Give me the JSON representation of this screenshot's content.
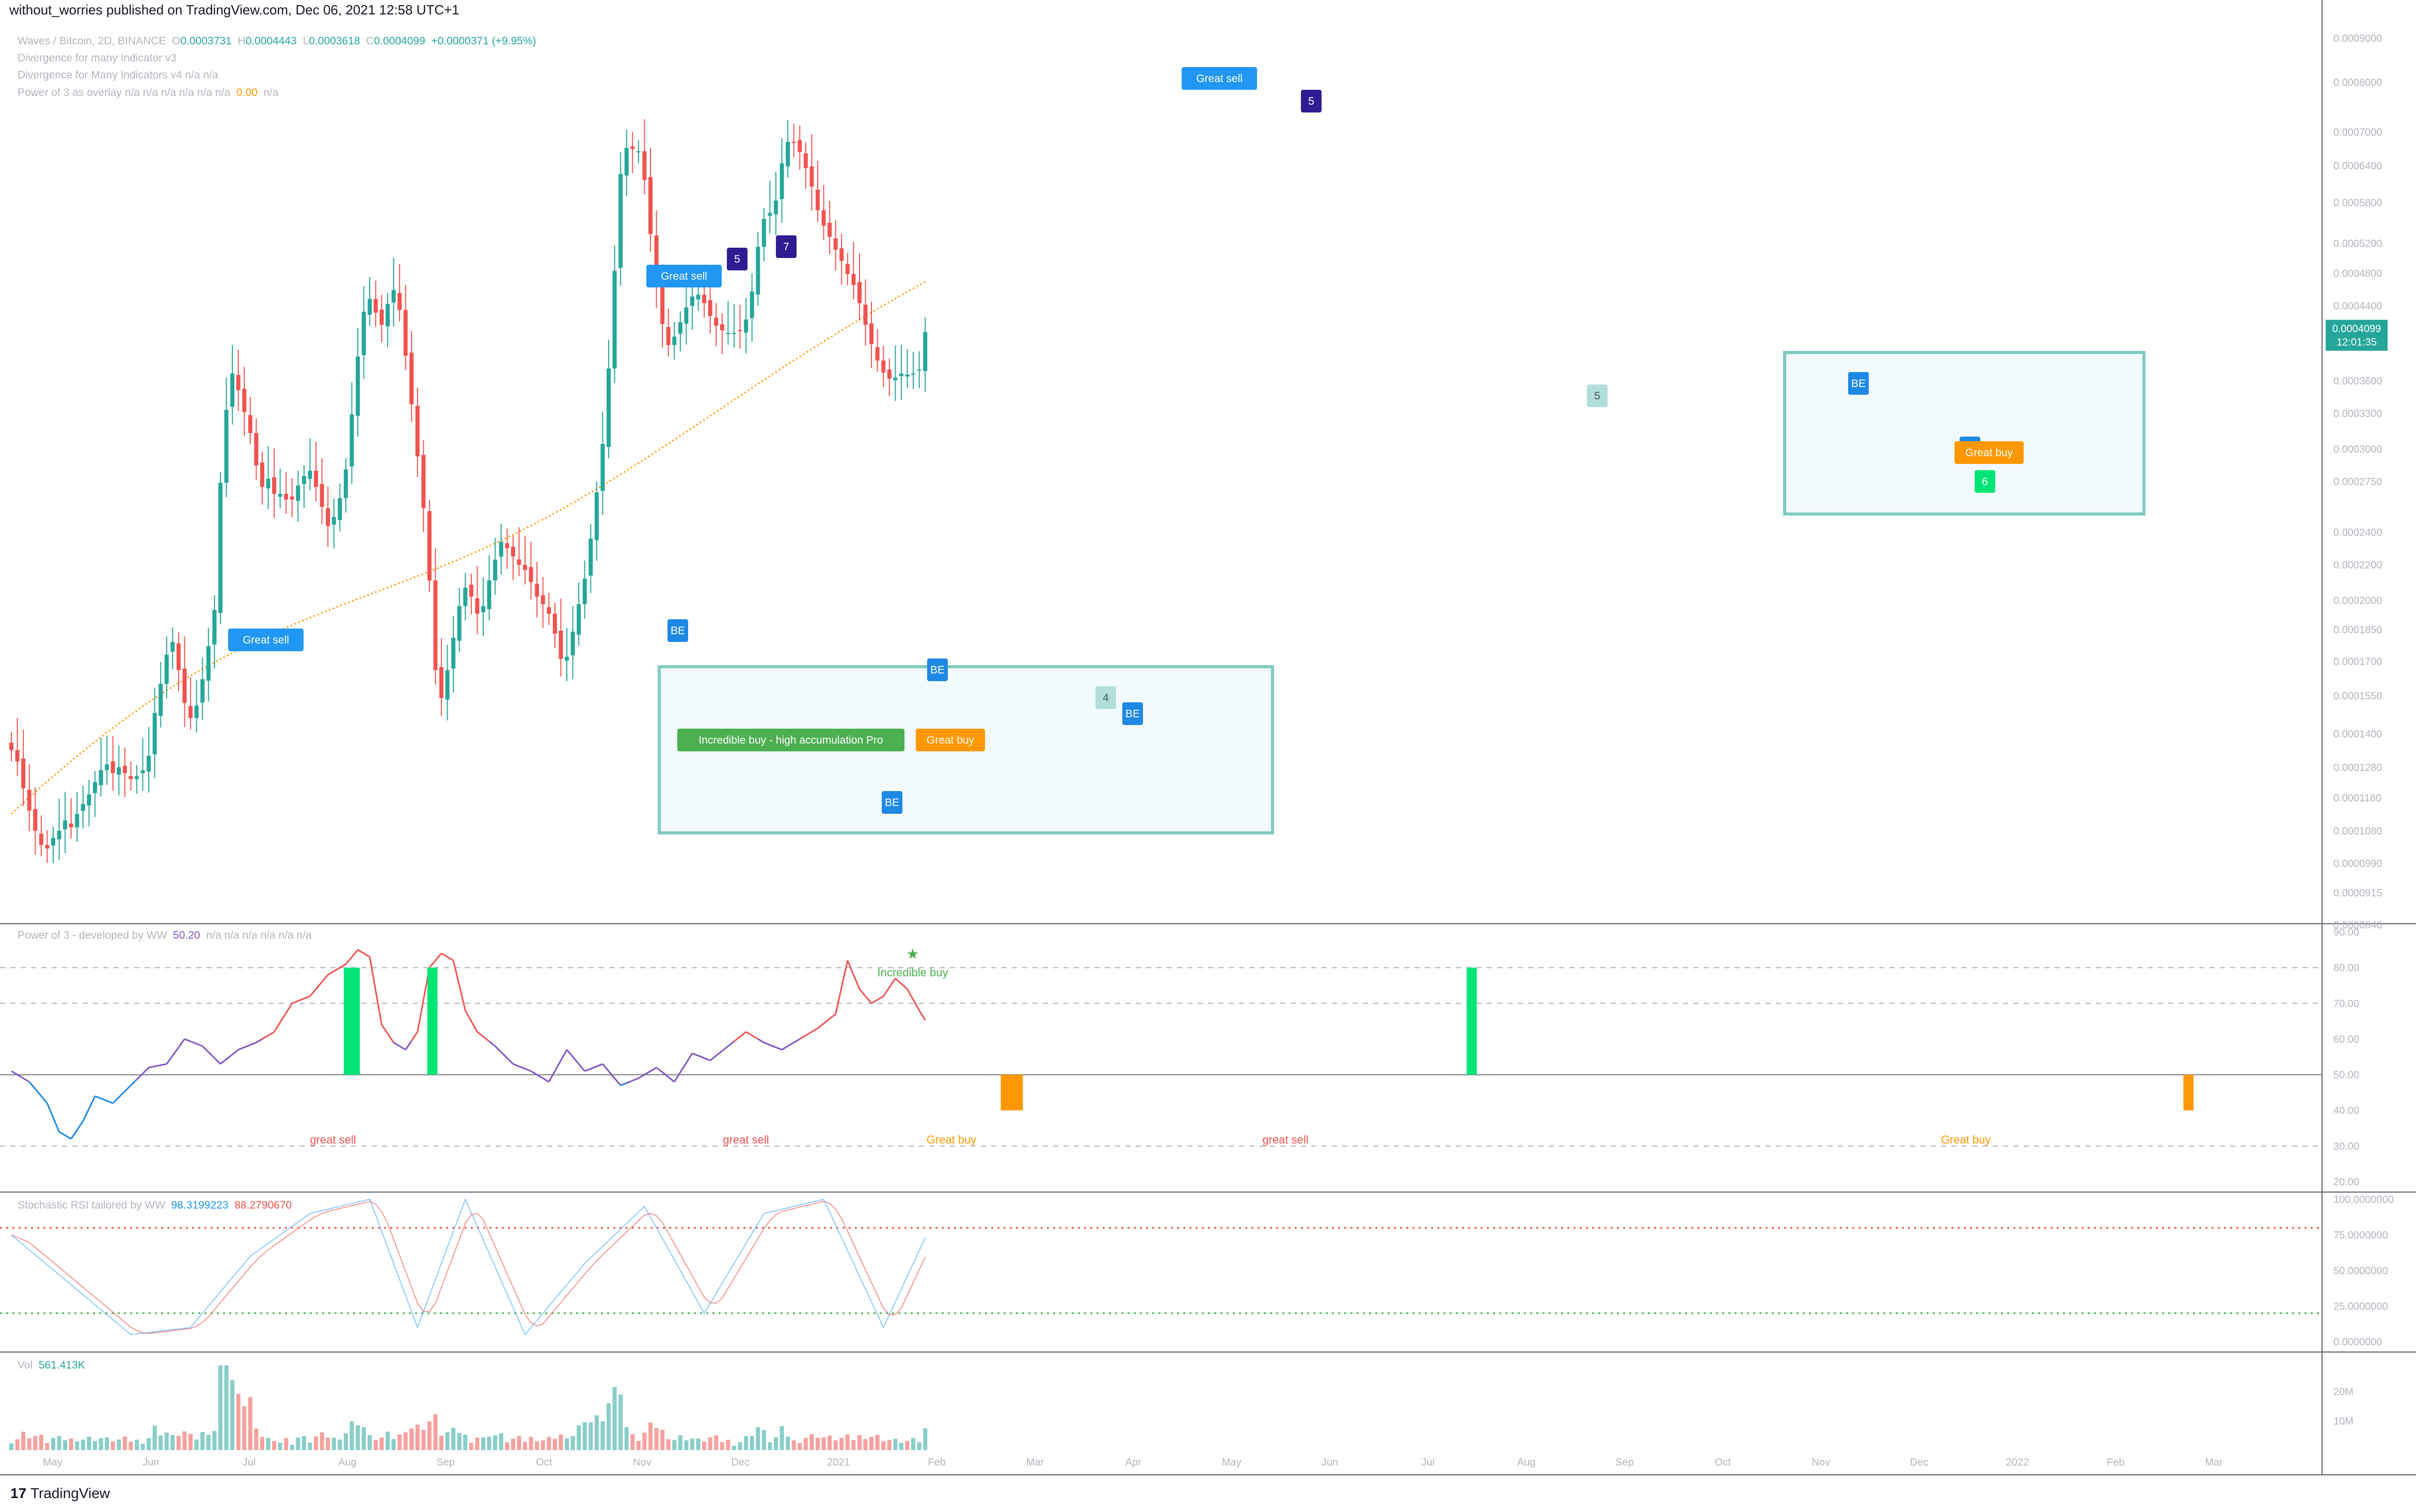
{
  "header": {
    "published": "without_worries published on TradingView.com, Dec 06, 2021 12:58 UTC+1"
  },
  "legends": {
    "symbol": "Waves / Bitcoin, 2D, BINANCE",
    "o_label": "O",
    "o": "0.0003731",
    "h_label": "H",
    "h": "0.0004443",
    "l_label": "L",
    "l": "0.0003618",
    "c_label": "C",
    "c": "0.0004099",
    "chg": "+0.0000371 (+9.95%)",
    "ind1": "Divergence for many Indicator v3",
    "ind2": "Divergence for Many Indicators v4  n/a  n/a",
    "ind3": "Power of 3 as overlay  n/a  n/a  n/a  n/a  n/a  n/a",
    "ind3_val": "0.00",
    "ind3_tail": "n/a",
    "power3": "Power of 3 - developed by WW",
    "power3_val": "50.20",
    "power3_tail": "n/a  n/a  n/a  n/a  n/a  n/a",
    "stoch": "Stochastic RSI tailored by WW",
    "stoch_k": "98.3199223",
    "stoch_d": "88.2790670",
    "vol": "Vol",
    "vol_val": "561.413K"
  },
  "price_tag": {
    "value": "0.0004099",
    "countdown": "12:01:35",
    "color": "#26a69a"
  },
  "brand": {
    "logo": "17",
    "name": "TradingView"
  },
  "colors": {
    "up": "#26a69a",
    "down": "#ef5350",
    "box": "#80cbc4",
    "ma": "#ff9800",
    "sell_label": "#2196f3",
    "buy_label": "#ff9800",
    "incredible": "#4caf50"
  },
  "chart_data": [
    {
      "type": "candlestick",
      "title": "Waves / Bitcoin, 2D, BINANCE",
      "price_scale_ticks": [
        "0.0009000",
        "0.0008000",
        "0.0007000",
        "0.0006400",
        "0.0005800",
        "0.0005200",
        "0.0004800",
        "0.0004400",
        "0.0004000",
        "0.0003600",
        "0.0003300",
        "0.0003000",
        "0.0002750",
        "0.0002400",
        "0.0002200",
        "0.0002000",
        "0.0001850",
        "0.0001700",
        "0.0001550",
        "0.0001400",
        "0.0001280",
        "0.0001180",
        "0.0001080",
        "0.0000990",
        "0.0000915",
        "0.0000840"
      ],
      "x_ticks": [
        "May",
        "Jun",
        "Jul",
        "Aug",
        "Sep",
        "Oct",
        "Nov",
        "Dec",
        "2021",
        "Feb",
        "Mar",
        "Apr",
        "May",
        "Jun",
        "Jul",
        "Aug",
        "Sep",
        "Oct",
        "Nov",
        "Dec",
        "2022",
        "Feb",
        "Mar"
      ],
      "log_scale": true,
      "close": [
        0.000134,
        0.00013,
        0.000121,
        0.000114,
        0.000108,
        0.000104,
        0.000103,
        0.000106,
        0.000108,
        0.000111,
        0.000109,
        0.000113,
        0.000116,
        0.000119,
        0.000123,
        0.000127,
        0.000129,
        0.000126,
        0.000128,
        0.000126,
        0.000124,
        0.000125,
        0.000127,
        0.000132,
        0.000148,
        0.00016,
        0.000173,
        0.000179,
        0.000166,
        0.000152,
        0.000146,
        0.000151,
        0.000162,
        0.000177,
        0.000195,
        0.000274,
        0.000333,
        0.000367,
        0.000351,
        0.000331,
        0.000313,
        0.000287,
        0.000271,
        0.000277,
        0.000266,
        0.000266,
        0.000262,
        0.000262,
        0.000272,
        0.000279,
        0.000283,
        0.000271,
        0.000257,
        0.000244,
        0.00025,
        0.000263,
        0.000284,
        0.000329,
        0.000384,
        0.000433,
        0.000448,
        0.000432,
        0.000418,
        0.000442,
        0.000459,
        0.000435,
        0.000385,
        0.000338,
        0.000294,
        0.000256,
        0.000211,
        0.000166,
        0.000154,
        0.000166,
        0.000181,
        0.000197,
        0.000207,
        0.000202,
        0.000193,
        0.000197,
        0.000211,
        0.000223,
        0.000234,
        0.00023,
        0.000225,
        0.00022,
        0.000217,
        0.00021,
        0.000202,
        0.000198,
        0.000193,
        0.000183,
        0.000171,
        0.000172,
        0.000184,
        0.000198,
        0.000212,
        0.000236,
        0.000267,
        0.000304,
        0.000372,
        0.000483,
        0.000626,
        0.000671,
        0.000669,
        0.000665,
        0.000616,
        0.000533,
        0.000462,
        0.000419,
        0.000396,
        0.000405,
        0.000421,
        0.000438,
        0.000451,
        0.000453,
        0.000443,
        0.000428,
        0.000417,
        0.000412,
        0.000409,
        0.000409,
        0.000411,
        0.000424,
        0.000457,
        0.000515,
        0.000555,
        0.000564,
        0.000583,
        0.000644,
        0.000682,
        0.00068,
        0.000664,
        0.000636,
        0.000605,
        0.000568,
        0.000545,
        0.000529,
        0.000511,
        0.000496,
        0.000479,
        0.000465,
        0.000443,
        0.000418,
        0.000397,
        0.00038,
        0.000368,
        0.000362,
        0.000363,
        0.000367,
        0.000366,
        0.000367,
        0.000371,
        0.00041
      ],
      "ma_start": 0.000113,
      "ma_end": 0.000469,
      "markers": [
        {
          "text": "Great sell",
          "kind": "sell"
        },
        {
          "text": "Great sell",
          "kind": "sell"
        },
        {
          "text": "Great sell",
          "kind": "sell"
        },
        {
          "text": "5",
          "kind": "count"
        },
        {
          "text": "7",
          "kind": "count"
        },
        {
          "text": "5",
          "kind": "count"
        },
        {
          "text": "BE",
          "kind": "be"
        },
        {
          "text": "BE",
          "kind": "be"
        },
        {
          "text": "BE",
          "kind": "be"
        },
        {
          "text": "BE",
          "kind": "be"
        },
        {
          "text": "BE",
          "kind": "be"
        },
        {
          "text": "BE",
          "kind": "be"
        },
        {
          "text": "Incredible buy - high accumulation Pro",
          "kind": "incredible"
        },
        {
          "text": "Great buy",
          "kind": "buy"
        },
        {
          "text": "Great buy",
          "kind": "buy"
        },
        {
          "text": "4",
          "kind": "soft"
        },
        {
          "text": "5",
          "kind": "soft"
        },
        {
          "text": "6",
          "kind": "green"
        }
      ]
    },
    {
      "type": "line",
      "title": "Power of 3 - developed by WW",
      "y_ticks": [
        90,
        80,
        70,
        60,
        50,
        40,
        30,
        20
      ],
      "ylim": [
        20,
        90
      ],
      "midline": 50,
      "dashed_levels": [
        80,
        70,
        30
      ],
      "anchors": [
        [
          0,
          51
        ],
        [
          3,
          48
        ],
        [
          6,
          42
        ],
        [
          8,
          34
        ],
        [
          10,
          32
        ],
        [
          12,
          37
        ],
        [
          14,
          44
        ],
        [
          17,
          42
        ],
        [
          20,
          47
        ],
        [
          23,
          52
        ],
        [
          26,
          53
        ],
        [
          29,
          60
        ],
        [
          32,
          58
        ],
        [
          35,
          53
        ],
        [
          38,
          57
        ],
        [
          41,
          59
        ],
        [
          44,
          62
        ],
        [
          47,
          70
        ],
        [
          50,
          72
        ],
        [
          53,
          78
        ],
        [
          56,
          81
        ],
        [
          58,
          85
        ],
        [
          60,
          83
        ],
        [
          62,
          64
        ],
        [
          64,
          59
        ],
        [
          66,
          57
        ],
        [
          68,
          62
        ],
        [
          70,
          80
        ],
        [
          72,
          84
        ],
        [
          74,
          82
        ],
        [
          76,
          68
        ],
        [
          78,
          62
        ],
        [
          81,
          58
        ],
        [
          84,
          53
        ],
        [
          87,
          51
        ],
        [
          90,
          48
        ],
        [
          93,
          57
        ],
        [
          96,
          51
        ],
        [
          99,
          53
        ],
        [
          102,
          47
        ],
        [
          105,
          49
        ],
        [
          108,
          52
        ],
        [
          111,
          48
        ],
        [
          114,
          56
        ],
        [
          117,
          54
        ],
        [
          120,
          58
        ],
        [
          123,
          62
        ],
        [
          126,
          59
        ],
        [
          129,
          57
        ],
        [
          132,
          60
        ],
        [
          135,
          63
        ],
        [
          138,
          67
        ],
        [
          140,
          82
        ],
        [
          142,
          74
        ],
        [
          144,
          70
        ],
        [
          146,
          72
        ],
        [
          148,
          77
        ],
        [
          150,
          74
        ],
        [
          152,
          68
        ],
        [
          155,
          60
        ],
        [
          158,
          52
        ],
        [
          161,
          46
        ],
        [
          164,
          41
        ],
        [
          167,
          36
        ],
        [
          170,
          32
        ],
        [
          172,
          30
        ],
        [
          174,
          35
        ],
        [
          176,
          42
        ],
        [
          178,
          47
        ],
        [
          181,
          44
        ],
        [
          184,
          46
        ],
        [
          187,
          42
        ],
        [
          190,
          47
        ],
        [
          193,
          45
        ],
        [
          196,
          49
        ],
        [
          199,
          46
        ],
        [
          202,
          47
        ],
        [
          205,
          43
        ],
        [
          208,
          44
        ],
        [
          211,
          42
        ],
        [
          214,
          37
        ],
        [
          217,
          44
        ],
        [
          220,
          49
        ],
        [
          223,
          56
        ],
        [
          226,
          60
        ],
        [
          229,
          62
        ],
        [
          232,
          59
        ],
        [
          235,
          67
        ],
        [
          238,
          70
        ],
        [
          241,
          78
        ],
        [
          244,
          86
        ],
        [
          246,
          90
        ],
        [
          248,
          87
        ],
        [
          250,
          74
        ],
        [
          252,
          67
        ],
        [
          255,
          53
        ],
        [
          258,
          48
        ],
        [
          261,
          45
        ],
        [
          264,
          47
        ],
        [
          267,
          51
        ],
        [
          270,
          48
        ],
        [
          273,
          54
        ],
        [
          276,
          51
        ],
        [
          279,
          56
        ],
        [
          282,
          59
        ],
        [
          285,
          62
        ],
        [
          288,
          59
        ],
        [
          291,
          52
        ],
        [
          294,
          48
        ],
        [
          297,
          51
        ],
        [
          300,
          48
        ],
        [
          303,
          46
        ],
        [
          306,
          41
        ],
        [
          309,
          53
        ],
        [
          312,
          70
        ],
        [
          315,
          67
        ],
        [
          318,
          63
        ],
        [
          321,
          67
        ],
        [
          324,
          70
        ],
        [
          327,
          66
        ],
        [
          330,
          62
        ],
        [
          333,
          60
        ],
        [
          336,
          56
        ],
        [
          339,
          55
        ],
        [
          342,
          52
        ],
        [
          345,
          51
        ],
        [
          348,
          49
        ],
        [
          351,
          47
        ],
        [
          354,
          44
        ],
        [
          357,
          41
        ],
        [
          360,
          38
        ],
        [
          363,
          36
        ],
        [
          366,
          35
        ],
        [
          369,
          34
        ],
        [
          372,
          36
        ],
        [
          375,
          40
        ],
        [
          378,
          44
        ],
        [
          381,
          50
        ]
      ],
      "annotations": [
        {
          "text": "great sell",
          "color": "#ef5350"
        },
        {
          "text": "great sell",
          "color": "#ef5350"
        },
        {
          "text": "great sell",
          "color": "#ef5350"
        },
        {
          "text": "Great buy",
          "color": "#ff9800"
        },
        {
          "text": "Great buy",
          "color": "#ff9800"
        },
        {
          "text": "Incredible buy",
          "color": "#4caf50"
        }
      ]
    },
    {
      "type": "line",
      "title": "Stochastic RSI tailored by WW",
      "y_ticks": [
        "100.0000000",
        "75.0000000",
        "50.0000000",
        "25.0000000",
        "0.0000000"
      ],
      "ylim": [
        0,
        100
      ],
      "levels": [
        80,
        20
      ],
      "series": [
        {
          "name": "K",
          "color": "#2196f3"
        },
        {
          "name": "D",
          "color": "#ef5350"
        }
      ],
      "k_anchors": [
        [
          0,
          75
        ],
        [
          10,
          40
        ],
        [
          20,
          5
        ],
        [
          30,
          10
        ],
        [
          40,
          60
        ],
        [
          50,
          90
        ],
        [
          60,
          100
        ],
        [
          68,
          10
        ],
        [
          76,
          100
        ],
        [
          86,
          5
        ],
        [
          96,
          55
        ],
        [
          106,
          95
        ],
        [
          116,
          20
        ],
        [
          126,
          90
        ],
        [
          136,
          100
        ],
        [
          146,
          10
        ],
        [
          156,
          100
        ],
        [
          166,
          30
        ],
        [
          176,
          5
        ],
        [
          186,
          95
        ],
        [
          196,
          100
        ],
        [
          206,
          85
        ],
        [
          216,
          10
        ],
        [
          226,
          95
        ],
        [
          236,
          100
        ],
        [
          246,
          100
        ],
        [
          256,
          5
        ],
        [
          266,
          90
        ],
        [
          276,
          10
        ],
        [
          286,
          80
        ],
        [
          296,
          5
        ],
        [
          306,
          80
        ],
        [
          316,
          95
        ],
        [
          326,
          5
        ],
        [
          336,
          8
        ],
        [
          346,
          5
        ],
        [
          356,
          30
        ],
        [
          366,
          5
        ],
        [
          376,
          60
        ],
        [
          381,
          98
        ]
      ]
    },
    {
      "type": "bar",
      "title": "Vol",
      "y_ticks": [
        "20M",
        "10M"
      ],
      "ylim": [
        0,
        30000000
      ]
    }
  ]
}
